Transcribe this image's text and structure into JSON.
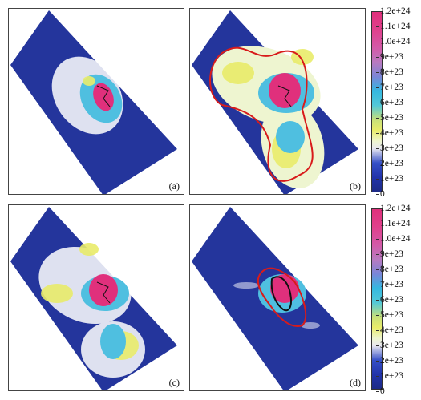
{
  "panels": [
    {
      "id": "a",
      "label": "(a)"
    },
    {
      "id": "b",
      "label": "(b)"
    },
    {
      "id": "c",
      "label": "(c)"
    },
    {
      "id": "d",
      "label": "(d)"
    }
  ],
  "colorbar": {
    "ticks": [
      "1.2e+24",
      "1.1e+24",
      "1.0e+24",
      "9e+23",
      "8e+23",
      "7e+23",
      "6e+23",
      "5e+23",
      "4e+23",
      "3e+23",
      "2e+23",
      "1e+23",
      "0"
    ],
    "colors": {
      "low": "#1d2a86",
      "mid_white": "#eeeeee",
      "yellow": "#e9ec6a",
      "cyan": "#35b8e0",
      "magenta": "#e0307c"
    }
  },
  "contour_colors": {
    "outer": "#d81b1b",
    "inner": "#111111"
  }
}
